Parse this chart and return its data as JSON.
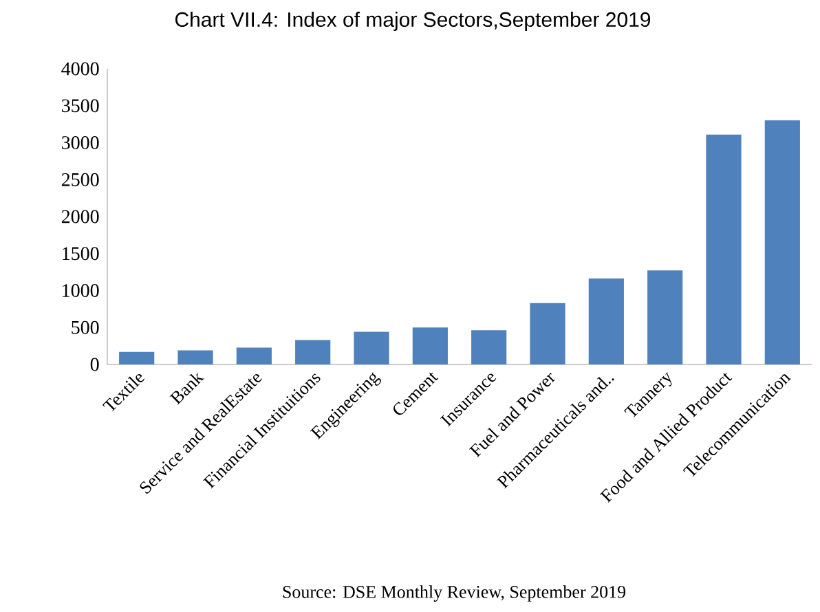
{
  "chart_data": {
    "type": "bar",
    "title": "Chart VII.4: Index of major Sectors,September 2019",
    "categories": [
      "Textile",
      "Bank",
      "Service and RealEstate",
      "Financial Instituitions",
      "Engineering",
      "Cement",
      "Insurance",
      "Fuel and Power",
      "Pharmaceuticals and..",
      "Tannery",
      "Food and Allied Product",
      "Telecommunication"
    ],
    "values": [
      169,
      191,
      228,
      331,
      441,
      500,
      463,
      831,
      1162,
      1272,
      3110,
      3302
    ],
    "color": "#4f81bd",
    "ylim": [
      0,
      4000
    ],
    "yticks": [
      0,
      500,
      1000,
      1500,
      2000,
      2500,
      3000,
      3500,
      4000
    ],
    "annotations": [
      "Source: DSE Monthly Review, September 2019"
    ]
  }
}
